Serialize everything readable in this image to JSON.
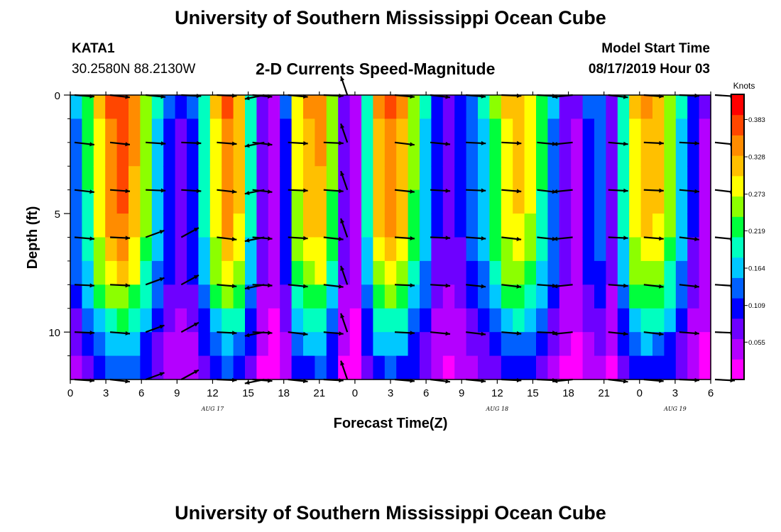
{
  "header": {
    "title": "University of Southern Mississippi Ocean Cube",
    "station": "KATA1",
    "location": "30.2580N 88.2130W",
    "subtitle": "2-D Currents Speed-Magnitude",
    "model_start_label": "Model Start Time",
    "model_start_value": "08/17/2019 Hour 03"
  },
  "footer": {
    "title": "University of Southern Mississippi Ocean Cube"
  },
  "colors": {
    "ramp": [
      "#ff00ff",
      "#b400ff",
      "#6e00ff",
      "#0000ff",
      "#0060ff",
      "#00c8ff",
      "#00ffc0",
      "#00ff3c",
      "#8cff00",
      "#ffff00",
      "#ffc000",
      "#ff8c00",
      "#ff4600",
      "#ff0000"
    ],
    "arrow": "#000000"
  },
  "chart_data": {
    "type": "heatmap",
    "title": "2-D Currents Speed-Magnitude",
    "xlabel": "Forecast Time(Z)",
    "ylabel": "Depth (ft)",
    "x_ticks": [
      "0",
      "3",
      "6",
      "9",
      "12",
      "15",
      "18",
      "21",
      "0",
      "3",
      "6",
      "9",
      "12",
      "15",
      "18",
      "21",
      "0",
      "3",
      "6"
    ],
    "x_range_hours": [
      0,
      54
    ],
    "date_labels": [
      {
        "label": "AUG 17",
        "hour": 12
      },
      {
        "label": "AUG 18",
        "hour": 36
      },
      {
        "label": "AUG 19",
        "hour": 51
      }
    ],
    "y_ticks": [
      "0",
      "5",
      "10"
    ],
    "y_range_ft": [
      0,
      12
    ],
    "colorbar": {
      "units": "Knots",
      "min": 0.0,
      "max": 0.42,
      "tick_values": [
        0.055,
        0.109,
        0.164,
        0.219,
        0.273,
        0.328,
        0.383
      ],
      "tick_labels": [
        "0.055",
        "0.109",
        "0.164",
        "0.219",
        "0.273",
        "0.328",
        "0.383"
      ]
    },
    "speed_profile": {
      "hours": [
        0,
        1,
        2,
        3,
        4,
        5,
        6,
        7,
        8,
        9,
        10,
        11,
        12,
        13,
        14,
        15,
        16,
        17,
        18,
        19,
        20,
        21,
        22,
        23,
        24,
        25,
        26,
        27,
        28,
        29,
        30,
        31,
        32,
        33,
        34,
        35,
        36,
        37,
        38,
        39,
        40,
        41,
        42,
        43,
        44,
        45,
        46,
        47,
        48,
        49,
        50,
        51,
        52,
        53,
        54
      ],
      "surface_knots": [
        0.15,
        0.22,
        0.3,
        0.36,
        0.38,
        0.34,
        0.26,
        0.18,
        0.12,
        0.09,
        0.12,
        0.2,
        0.3,
        0.36,
        0.32,
        0.2,
        0.08,
        0.05,
        0.12,
        0.28,
        0.33,
        0.34,
        0.25,
        0.08,
        0.05,
        0.2,
        0.33,
        0.36,
        0.33,
        0.25,
        0.18,
        0.1,
        0.08,
        0.1,
        0.14,
        0.18,
        0.24,
        0.3,
        0.32,
        0.29,
        0.22,
        0.15,
        0.08,
        0.06,
        0.12,
        0.14,
        0.08,
        0.2,
        0.3,
        0.33,
        0.32,
        0.26,
        0.18,
        0.1,
        0.06
      ],
      "depth_decay": [
        1.0,
        0.99,
        0.98,
        0.97,
        0.95,
        0.93,
        0.88,
        0.8,
        0.7,
        0.58,
        0.46,
        0.36
      ]
    },
    "vectors": {
      "hours": [
        0,
        3,
        6,
        9,
        12,
        15,
        16,
        18,
        21,
        23,
        27,
        30,
        33,
        36,
        39,
        42,
        45,
        48,
        51,
        54
      ],
      "depths_ft": [
        0,
        2,
        4,
        6,
        8,
        10,
        12
      ],
      "description": "Current direction vectors at 3-hourly intervals; mostly eastward near-horizontal arrows, westward/southward reversals around hours 16-17, 21-23, and 42-43."
    }
  }
}
